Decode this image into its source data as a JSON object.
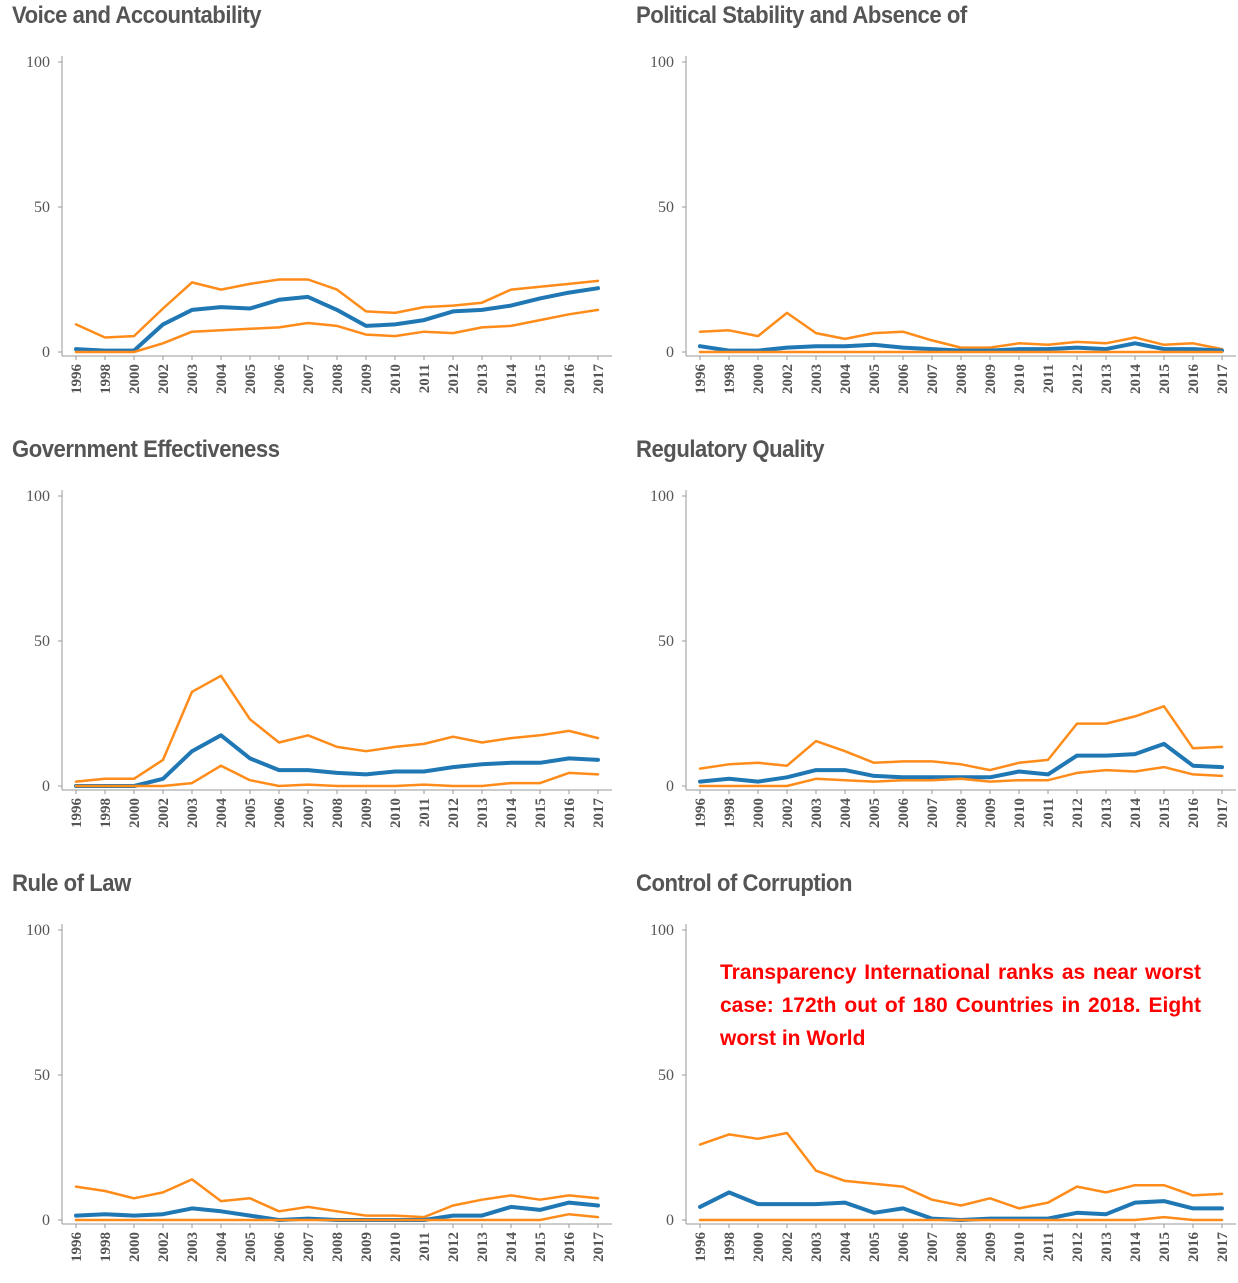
{
  "colors": {
    "estimate": "#1f77b4",
    "bounds": "#ff8c1a",
    "axis": "#999999",
    "text": "#555555",
    "note": "#ff0000"
  },
  "note": "Transparency International ranks as near worst case: 172th out of 180 Countries in 2018. Eight worst in World",
  "chart_data": [
    {
      "type": "line",
      "title": "Voice and Accountability",
      "x": [
        "1996",
        "1998",
        "2000",
        "2002",
        "2003",
        "2004",
        "2005",
        "2006",
        "2007",
        "2008",
        "2009",
        "2010",
        "2011",
        "2012",
        "2013",
        "2014",
        "2015",
        "2016",
        "2017"
      ],
      "y_ticks": [
        "0",
        "50",
        "100"
      ],
      "ylim": [
        0,
        100
      ],
      "series": [
        {
          "role": "upper",
          "values": [
            9.5,
            5,
            5.5,
            15,
            24,
            21.5,
            23.5,
            25,
            25,
            21.5,
            14,
            13.5,
            15.5,
            16,
            17,
            21.5,
            22.5,
            23.5,
            24.5
          ]
        },
        {
          "role": "estimate",
          "values": [
            1,
            0.5,
            0.5,
            9.5,
            14.5,
            15.5,
            15,
            18,
            19,
            14.5,
            9,
            9.5,
            11,
            14,
            14.5,
            16,
            18.5,
            20.5,
            22
          ]
        },
        {
          "role": "lower",
          "values": [
            0,
            0,
            0,
            3,
            7,
            7.5,
            8,
            8.5,
            10,
            9,
            6,
            5.5,
            7,
            6.5,
            8.5,
            9,
            11,
            13,
            14.5
          ]
        }
      ]
    },
    {
      "type": "line",
      "title": "Political Stability and Absence of",
      "x": [
        "1996",
        "1998",
        "2000",
        "2002",
        "2003",
        "2004",
        "2005",
        "2006",
        "2007",
        "2008",
        "2009",
        "2010",
        "2011",
        "2012",
        "2013",
        "2014",
        "2015",
        "2016",
        "2017"
      ],
      "y_ticks": [
        "0",
        "50",
        "100"
      ],
      "ylim": [
        0,
        100
      ],
      "series": [
        {
          "role": "upper",
          "values": [
            7,
            7.5,
            5.5,
            13.5,
            6.5,
            4.5,
            6.5,
            7,
            4,
            1.5,
            1.5,
            3,
            2.5,
            3.5,
            3,
            5,
            2.5,
            3,
            1
          ]
        },
        {
          "role": "estimate",
          "values": [
            2,
            0.5,
            0.5,
            1.5,
            2,
            2,
            2.5,
            1.5,
            1,
            0.5,
            0.5,
            1,
            1,
            1.5,
            1,
            3,
            1,
            1,
            0.5
          ]
        },
        {
          "role": "lower",
          "values": [
            0,
            0,
            0,
            0,
            0,
            0,
            0,
            0,
            0,
            0,
            0,
            0,
            0,
            0,
            0,
            0,
            0,
            0,
            0
          ]
        }
      ]
    },
    {
      "type": "line",
      "title": "Government Effectiveness",
      "x": [
        "1996",
        "1998",
        "2000",
        "2002",
        "2003",
        "2004",
        "2005",
        "2006",
        "2007",
        "2008",
        "2009",
        "2010",
        "2011",
        "2012",
        "2013",
        "2014",
        "2015",
        "2016",
        "2017"
      ],
      "y_ticks": [
        "0",
        "50",
        "100"
      ],
      "ylim": [
        0,
        100
      ],
      "series": [
        {
          "role": "upper",
          "values": [
            1.5,
            2.5,
            2.5,
            9,
            32.5,
            38,
            23,
            15,
            17.5,
            13.5,
            12,
            13.5,
            14.5,
            17,
            15,
            16.5,
            17.5,
            19,
            16.5
          ]
        },
        {
          "role": "estimate",
          "values": [
            0,
            0,
            0,
            2.5,
            12,
            17.5,
            9.5,
            5.5,
            5.5,
            4.5,
            4,
            5,
            5,
            6.5,
            7.5,
            8,
            8,
            9.5,
            9
          ]
        },
        {
          "role": "lower",
          "values": [
            0,
            0,
            0,
            0,
            1,
            7,
            2,
            0,
            0.5,
            0,
            0,
            0,
            0.5,
            0,
            0,
            1,
            1,
            4.5,
            4
          ]
        }
      ]
    },
    {
      "type": "line",
      "title": "Regulatory Quality",
      "x": [
        "1996",
        "1998",
        "2000",
        "2002",
        "2003",
        "2004",
        "2005",
        "2006",
        "2007",
        "2008",
        "2009",
        "2010",
        "2011",
        "2012",
        "2013",
        "2014",
        "2015",
        "2016",
        "2017"
      ],
      "y_ticks": [
        "0",
        "50",
        "100"
      ],
      "ylim": [
        0,
        100
      ],
      "series": [
        {
          "role": "upper",
          "values": [
            6,
            7.5,
            8,
            7,
            15.5,
            12,
            8,
            8.5,
            8.5,
            7.5,
            5.5,
            8,
            9,
            21.5,
            21.5,
            24,
            27.5,
            13,
            13.5
          ]
        },
        {
          "role": "estimate",
          "values": [
            1.5,
            2.5,
            1.5,
            3,
            5.5,
            5.5,
            3.5,
            3,
            3,
            3,
            3,
            5,
            4,
            10.5,
            10.5,
            11,
            14.5,
            7,
            6.5
          ]
        },
        {
          "role": "lower",
          "values": [
            0,
            0,
            0,
            0,
            2.5,
            2,
            1.5,
            2,
            2,
            2.5,
            1.5,
            2,
            2,
            4.5,
            5.5,
            5,
            6.5,
            4,
            3.5
          ]
        }
      ]
    },
    {
      "type": "line",
      "title": "Rule of Law",
      "x": [
        "1996",
        "1998",
        "2000",
        "2002",
        "2003",
        "2004",
        "2005",
        "2006",
        "2007",
        "2008",
        "2009",
        "2010",
        "2011",
        "2012",
        "2013",
        "2014",
        "2015",
        "2016",
        "2017"
      ],
      "y_ticks": [
        "0",
        "50",
        "100"
      ],
      "ylim": [
        0,
        100
      ],
      "series": [
        {
          "role": "upper",
          "values": [
            11.5,
            10,
            7.5,
            9.5,
            14,
            6.5,
            7.5,
            3,
            4.5,
            3,
            1.5,
            1.5,
            1,
            5,
            7,
            8.5,
            7,
            8.5,
            7.5
          ]
        },
        {
          "role": "estimate",
          "values": [
            1.5,
            2,
            1.5,
            2,
            4,
            3,
            1.5,
            0,
            0.5,
            0,
            0,
            0,
            0,
            1.5,
            1.5,
            4.5,
            3.5,
            6,
            5
          ]
        },
        {
          "role": "lower",
          "values": [
            0,
            0,
            0,
            0,
            0,
            0,
            0,
            0,
            0,
            0,
            0,
            0,
            0,
            0,
            0,
            0,
            0,
            2,
            1
          ]
        }
      ]
    },
    {
      "type": "line",
      "title": "Control of Corruption",
      "x": [
        "1996",
        "1998",
        "2000",
        "2002",
        "2003",
        "2004",
        "2005",
        "2006",
        "2007",
        "2008",
        "2009",
        "2010",
        "2011",
        "2012",
        "2013",
        "2014",
        "2015",
        "2016",
        "2017"
      ],
      "y_ticks": [
        "0",
        "50",
        "100"
      ],
      "ylim": [
        0,
        100
      ],
      "series": [
        {
          "role": "upper",
          "values": [
            26,
            29.5,
            28,
            30,
            17,
            13.5,
            12.5,
            11.5,
            7,
            5,
            7.5,
            4,
            6,
            11.5,
            9.5,
            12,
            12,
            8.5,
            9
          ]
        },
        {
          "role": "estimate",
          "values": [
            4.5,
            9.5,
            5.5,
            5.5,
            5.5,
            6,
            2.5,
            4,
            0.5,
            0,
            0.5,
            0.5,
            0.5,
            2.5,
            2,
            6,
            6.5,
            4,
            4
          ]
        },
        {
          "role": "lower",
          "values": [
            0,
            0,
            0,
            0,
            0,
            0,
            0,
            0,
            0,
            0,
            0,
            0,
            0,
            0,
            0,
            0,
            1,
            0,
            0
          ]
        }
      ]
    }
  ]
}
